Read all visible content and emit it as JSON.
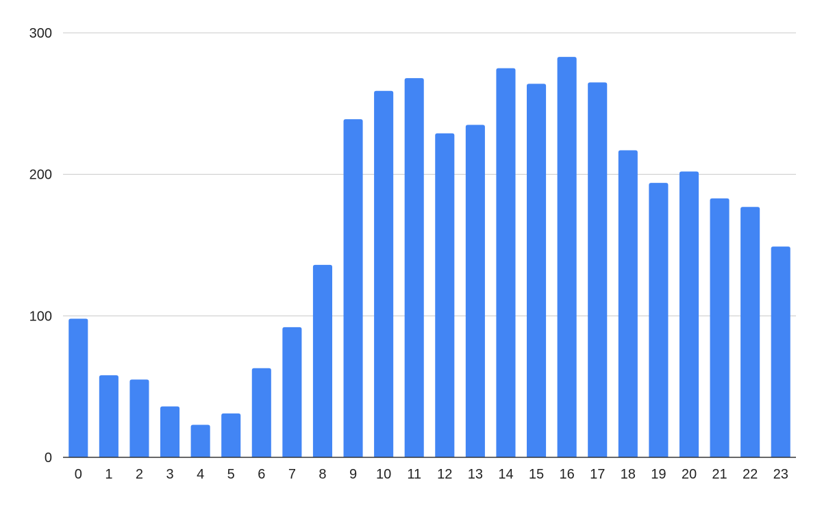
{
  "chart_data": {
    "type": "bar",
    "title": "",
    "xlabel": "",
    "ylabel": "",
    "categories": [
      "0",
      "1",
      "2",
      "3",
      "4",
      "5",
      "6",
      "7",
      "8",
      "9",
      "10",
      "11",
      "12",
      "13",
      "14",
      "15",
      "16",
      "17",
      "18",
      "19",
      "20",
      "21",
      "22",
      "23"
    ],
    "values": [
      98,
      58,
      55,
      36,
      23,
      31,
      63,
      92,
      136,
      239,
      259,
      268,
      229,
      235,
      275,
      264,
      283,
      265,
      217,
      194,
      202,
      183,
      177,
      149
    ],
    "ylim": [
      0,
      300
    ],
    "yticks": [
      "0",
      "100",
      "200",
      "300"
    ],
    "grid": true,
    "legend": "none",
    "bar_color": "#4285f4",
    "grid_color": "#c8c8c8",
    "axis_color": "#333333"
  }
}
